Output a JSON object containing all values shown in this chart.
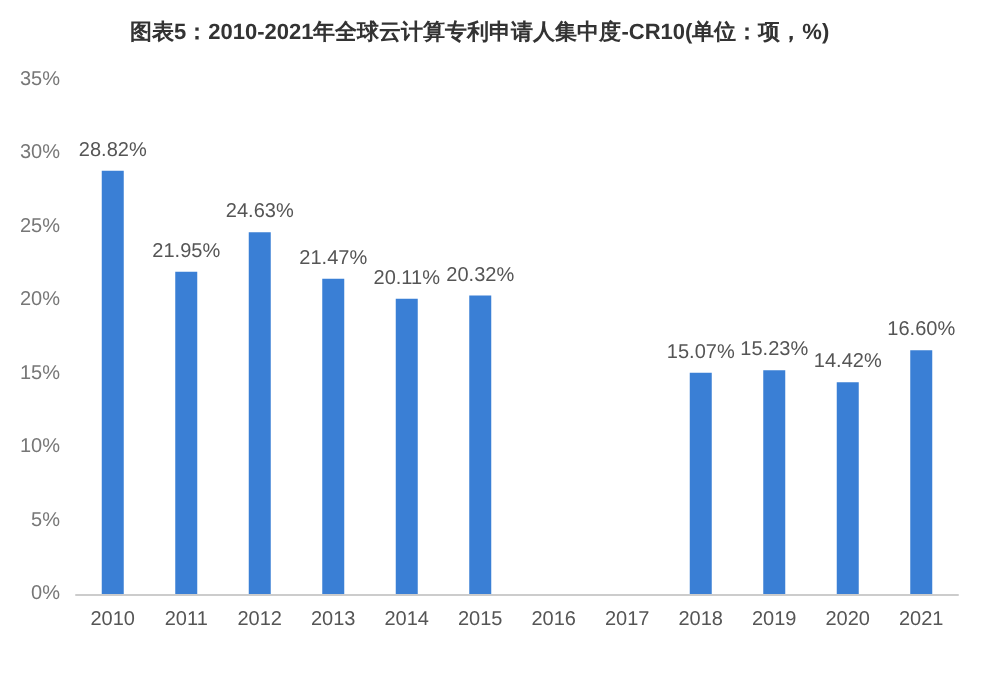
{
  "chart_data": {
    "type": "bar",
    "title": "图表5：2010-2021年全球云计算专利申请人集中度-CR10(单位：项，%)",
    "categories": [
      "2010",
      "2011",
      "2012",
      "2013",
      "2014",
      "2015",
      "2016",
      "2017",
      "2018",
      "2019",
      "2020",
      "2021"
    ],
    "values": [
      28.82,
      21.95,
      24.63,
      21.47,
      20.11,
      20.32,
      null,
      null,
      15.07,
      15.23,
      14.42,
      16.6
    ],
    "value_labels": [
      "28.82%",
      "21.95%",
      "24.63%",
      "21.47%",
      "20.11%",
      "20.32%",
      null,
      null,
      "15.07%",
      "15.23%",
      "14.42%",
      "16.60%"
    ],
    "color": "#3a7fd5",
    "ylim": [
      0,
      35
    ],
    "yticks": [
      {
        "value": 0,
        "label": "0%"
      },
      {
        "value": 5,
        "label": "5%"
      },
      {
        "value": 10,
        "label": "10%"
      },
      {
        "value": 15,
        "label": "15%"
      },
      {
        "value": 20,
        "label": "20%"
      },
      {
        "value": 25,
        "label": "25%"
      },
      {
        "value": 30,
        "label": "30%"
      },
      {
        "value": 35,
        "label": "35%"
      }
    ],
    "grid": false
  }
}
